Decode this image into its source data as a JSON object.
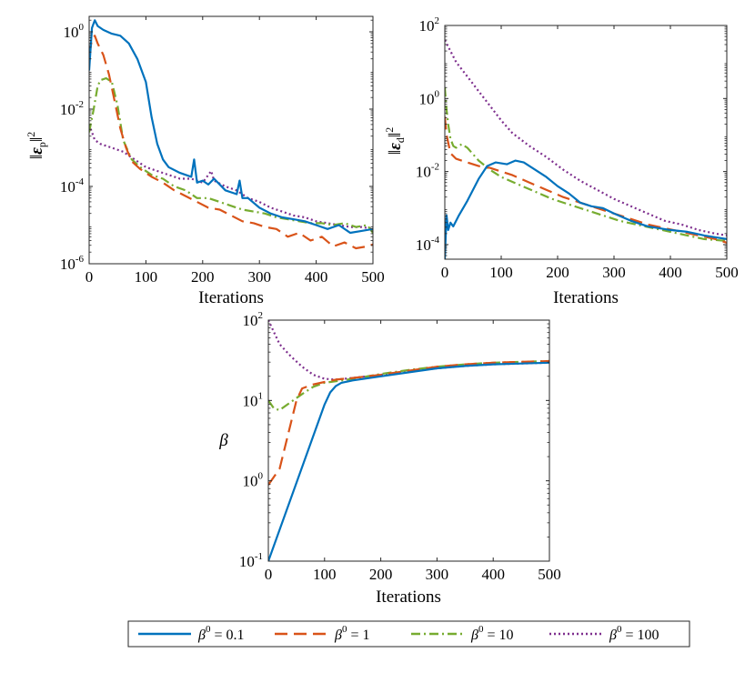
{
  "colors": {
    "beta_0.1": "#0072BD",
    "beta_1": "#D95319",
    "beta_10": "#77AC30",
    "beta_100": "#7E2F8E"
  },
  "legend": {
    "entries": [
      {
        "sym": "β",
        "sup": "0",
        "value": "= 0.1",
        "color": "#0072BD",
        "dash": "solid"
      },
      {
        "sym": "β",
        "sup": "0",
        "value": "= 1",
        "color": "#D95319",
        "dash": "dashed"
      },
      {
        "sym": "β",
        "sup": "0",
        "value": "= 10",
        "color": "#77AC30",
        "dash": "dashdot"
      },
      {
        "sym": "β",
        "sup": "0",
        "value": "= 100",
        "color": "#7E2F8E",
        "dash": "dotted"
      }
    ]
  },
  "chart_data": [
    {
      "type": "line",
      "title": "",
      "xlabel": "Iterations",
      "ylabel": "||ε_p||^2",
      "yscale": "log",
      "xlim": [
        0,
        500
      ],
      "ylim_exp": [
        -6,
        0.4
      ],
      "x_ticks": [
        "0",
        "100",
        "200",
        "300",
        "400",
        "500"
      ],
      "y_ticks": [
        {
          "base": "10",
          "exp": "0"
        },
        {
          "base": "10",
          "exp": "-2"
        },
        {
          "base": "10",
          "exp": "-4"
        },
        {
          "base": "10",
          "exp": "-6"
        }
      ],
      "series": [
        {
          "name": "β0 = 0.1",
          "x": [
            0,
            5,
            10,
            15,
            25,
            40,
            55,
            70,
            85,
            100,
            110,
            120,
            130,
            140,
            160,
            180,
            185,
            190,
            200,
            210,
            220,
            240,
            260,
            265,
            270,
            280,
            300,
            320,
            340,
            360,
            380,
            400,
            420,
            440,
            460,
            480,
            500
          ],
          "log10": [
            -1.0,
            0.1,
            0.3,
            0.15,
            0.05,
            -0.05,
            -0.1,
            -0.3,
            -0.7,
            -1.3,
            -2.2,
            -2.9,
            -3.3,
            -3.5,
            -3.65,
            -3.75,
            -3.3,
            -3.9,
            -3.85,
            -3.95,
            -3.8,
            -4.1,
            -4.2,
            -3.85,
            -4.3,
            -4.3,
            -4.55,
            -4.7,
            -4.8,
            -4.85,
            -4.9,
            -5.0,
            -5.1,
            -5.0,
            -5.2,
            -5.15,
            -5.1
          ]
        },
        {
          "name": "β0 = 1",
          "x": [
            0,
            5,
            10,
            15,
            25,
            35,
            45,
            55,
            65,
            75,
            90,
            110,
            130,
            150,
            170,
            190,
            210,
            230,
            250,
            270,
            290,
            310,
            330,
            350,
            370,
            390,
            410,
            430,
            450,
            470,
            490,
            500
          ],
          "log10": [
            -0.6,
            -0.2,
            -0.1,
            -0.3,
            -0.6,
            -1.1,
            -1.8,
            -2.5,
            -3.0,
            -3.35,
            -3.55,
            -3.75,
            -3.9,
            -4.1,
            -4.25,
            -4.4,
            -4.55,
            -4.6,
            -4.75,
            -4.9,
            -4.95,
            -5.05,
            -5.1,
            -5.3,
            -5.2,
            -5.4,
            -5.3,
            -5.55,
            -5.45,
            -5.6,
            -5.55,
            -5.5
          ]
        },
        {
          "name": "β0 = 10",
          "x": [
            0,
            8,
            15,
            20,
            30,
            40,
            50,
            60,
            75,
            90,
            110,
            130,
            150,
            170,
            190,
            210,
            230,
            250,
            270,
            290,
            310,
            330,
            350,
            370,
            390,
            410,
            430,
            450,
            470,
            490,
            500
          ],
          "log10": [
            -2.6,
            -2.0,
            -1.4,
            -1.25,
            -1.2,
            -1.3,
            -1.9,
            -2.8,
            -3.3,
            -3.5,
            -3.7,
            -3.8,
            -4.0,
            -4.1,
            -4.3,
            -4.3,
            -4.4,
            -4.5,
            -4.6,
            -4.65,
            -4.7,
            -4.8,
            -4.85,
            -4.9,
            -4.95,
            -4.95,
            -5.0,
            -4.95,
            -5.05,
            -5.0,
            -5.2
          ]
        },
        {
          "name": "β0 = 100",
          "x": [
            0,
            10,
            20,
            40,
            60,
            80,
            100,
            120,
            140,
            160,
            180,
            200,
            215,
            220,
            240,
            260,
            280,
            300,
            320,
            340,
            360,
            380,
            400,
            420,
            440,
            460,
            480,
            500
          ],
          "log10": [
            -2.4,
            -2.8,
            -2.9,
            -3.0,
            -3.1,
            -3.3,
            -3.5,
            -3.6,
            -3.7,
            -3.8,
            -3.8,
            -3.9,
            -3.6,
            -3.85,
            -4.0,
            -4.1,
            -4.3,
            -4.4,
            -4.55,
            -4.65,
            -4.75,
            -4.8,
            -4.9,
            -4.95,
            -5.0,
            -5.05,
            -5.05,
            -5.1
          ]
        }
      ]
    },
    {
      "type": "line",
      "title": "",
      "xlabel": "Iterations",
      "ylabel": "||ε_d||^2",
      "yscale": "log",
      "xlim": [
        0,
        500
      ],
      "ylim_exp": [
        -4.4,
        2
      ],
      "x_ticks": [
        "0",
        "100",
        "200",
        "300",
        "400",
        "500"
      ],
      "y_ticks": [
        {
          "base": "10",
          "exp": "2"
        },
        {
          "base": "10",
          "exp": "0"
        },
        {
          "base": "10",
          "exp": "-2"
        },
        {
          "base": "10",
          "exp": "-4"
        }
      ],
      "series": [
        {
          "name": "β0 = 0.1",
          "x": [
            0,
            3,
            6,
            10,
            15,
            25,
            40,
            60,
            75,
            90,
            110,
            125,
            140,
            160,
            180,
            200,
            220,
            240,
            260,
            280,
            300,
            330,
            360,
            400,
            430,
            460,
            480,
            500
          ],
          "log10": [
            -4.4,
            -3.2,
            -3.6,
            -3.4,
            -3.5,
            -3.2,
            -2.8,
            -2.2,
            -1.85,
            -1.75,
            -1.8,
            -1.7,
            -1.75,
            -1.95,
            -2.15,
            -2.4,
            -2.6,
            -2.85,
            -2.95,
            -3.0,
            -3.15,
            -3.35,
            -3.5,
            -3.6,
            -3.65,
            -3.75,
            -3.8,
            -3.85
          ]
        },
        {
          "name": "β0 = 1",
          "x": [
            0,
            3,
            6,
            10,
            20,
            40,
            60,
            80,
            100,
            120,
            150,
            180,
            210,
            240,
            270,
            300,
            330,
            360,
            390,
            420,
            450,
            480,
            500
          ],
          "log10": [
            -0.5,
            -1.0,
            -1.2,
            -1.5,
            -1.65,
            -1.75,
            -1.85,
            -1.9,
            -2.0,
            -2.1,
            -2.3,
            -2.5,
            -2.7,
            -2.85,
            -3.0,
            -3.15,
            -3.3,
            -3.45,
            -3.55,
            -3.65,
            -3.75,
            -3.85,
            -3.95
          ]
        },
        {
          "name": "β0 = 10",
          "x": [
            0,
            3,
            6,
            10,
            15,
            20,
            30,
            40,
            60,
            80,
            100,
            130,
            160,
            190,
            220,
            250,
            280,
            310,
            340,
            370,
            400,
            430,
            460,
            500
          ],
          "log10": [
            0.3,
            -0.3,
            -0.7,
            -1.1,
            -1.3,
            -1.35,
            -1.25,
            -1.35,
            -1.7,
            -1.95,
            -2.15,
            -2.35,
            -2.55,
            -2.75,
            -2.9,
            -3.05,
            -3.2,
            -3.35,
            -3.45,
            -3.55,
            -3.65,
            -3.75,
            -3.85,
            -3.9
          ]
        },
        {
          "name": "β0 = 100",
          "x": [
            0,
            10,
            20,
            40,
            60,
            80,
            100,
            120,
            150,
            180,
            210,
            240,
            270,
            300,
            330,
            360,
            390,
            420,
            450,
            480,
            500
          ],
          "log10": [
            1.6,
            1.3,
            1.0,
            0.6,
            0.2,
            -0.2,
            -0.6,
            -0.95,
            -1.3,
            -1.6,
            -1.95,
            -2.25,
            -2.5,
            -2.75,
            -2.95,
            -3.15,
            -3.35,
            -3.45,
            -3.6,
            -3.7,
            -3.75
          ]
        }
      ]
    },
    {
      "type": "line",
      "title": "",
      "xlabel": "Iterations",
      "ylabel": "β",
      "yscale": "log",
      "xlim": [
        0,
        500
      ],
      "ylim_exp": [
        -1,
        2
      ],
      "x_ticks": [
        "0",
        "100",
        "200",
        "300",
        "400",
        "500"
      ],
      "y_ticks": [
        {
          "base": "10",
          "exp": "2"
        },
        {
          "base": "10",
          "exp": "1"
        },
        {
          "base": "10",
          "exp": "0"
        },
        {
          "base": "10",
          "exp": "-1"
        }
      ],
      "series": [
        {
          "name": "β0 = 0.1",
          "x": [
            0,
            100,
            110,
            120,
            130,
            150,
            200,
            250,
            300,
            350,
            400,
            450,
            500
          ],
          "log10": [
            -1.0,
            0.95,
            1.1,
            1.18,
            1.22,
            1.25,
            1.3,
            1.35,
            1.4,
            1.43,
            1.45,
            1.46,
            1.47
          ]
        },
        {
          "name": "β0 = 1",
          "x": [
            0,
            20,
            50,
            60,
            80,
            100,
            120,
            150,
            200,
            250,
            300,
            350,
            400,
            450,
            500
          ],
          "log10": [
            -0.05,
            0.15,
            1.0,
            1.15,
            1.2,
            1.23,
            1.26,
            1.28,
            1.32,
            1.37,
            1.42,
            1.45,
            1.47,
            1.48,
            1.49
          ]
        },
        {
          "name": "β0 = 10",
          "x": [
            0,
            10,
            20,
            40,
            60,
            80,
            100,
            130,
            160,
            200,
            250,
            300,
            350,
            400,
            450,
            500
          ],
          "log10": [
            1.0,
            0.9,
            0.88,
            0.98,
            1.08,
            1.17,
            1.22,
            1.25,
            1.28,
            1.33,
            1.38,
            1.42,
            1.45,
            1.47,
            1.48,
            1.49
          ]
        },
        {
          "name": "β0 = 100",
          "x": [
            0,
            10,
            20,
            40,
            60,
            80,
            100,
            120,
            150,
            200,
            250,
            300,
            350,
            400,
            450,
            500
          ],
          "log10": [
            2.0,
            1.85,
            1.7,
            1.55,
            1.42,
            1.32,
            1.27,
            1.26,
            1.28,
            1.32,
            1.36,
            1.4,
            1.43,
            1.45,
            1.46,
            1.47
          ]
        }
      ]
    }
  ]
}
